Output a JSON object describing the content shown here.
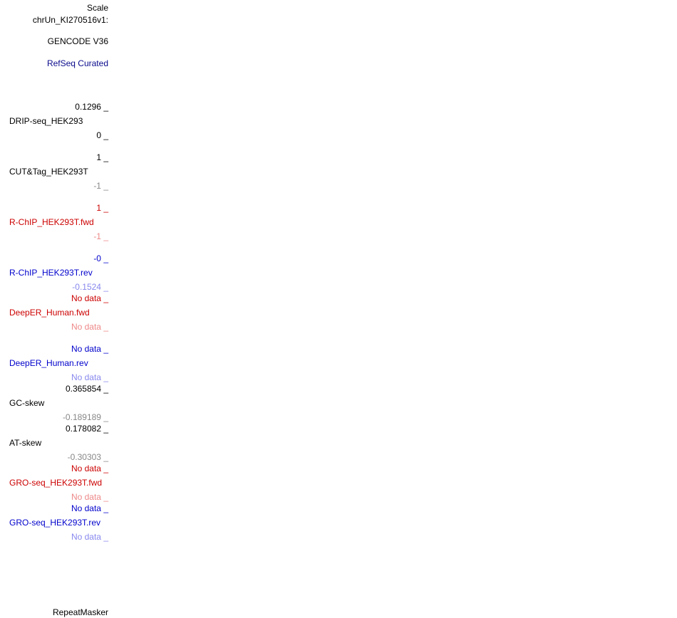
{
  "labels": {
    "scale": "Scale",
    "chrom": "chrUn_KI270516v1:",
    "gencode": "GENCODE V36",
    "refseq": "RefSeq Curated",
    "repeatmasker": "RepeatMasker"
  },
  "tracks": {
    "drip": {
      "max": "0.1296 _",
      "name": "DRIP-seq_HEK293",
      "min": "0 _"
    },
    "cuttag": {
      "max": "1 _",
      "name": "CUT&Tag_HEK293T",
      "min": "-1 _"
    },
    "rchip_fwd": {
      "max": "1 _",
      "name": "R-ChIP_HEK293T.fwd",
      "min": "-1 _"
    },
    "rchip_rev": {
      "max": "-0 _",
      "name": "R-ChIP_HEK293T.rev",
      "min": "-0.1524 _"
    },
    "deeper_fwd": {
      "max": "No data _",
      "name": "DeepER_Human.fwd",
      "min": "No data _"
    },
    "deeper_rev": {
      "max": "No data _",
      "name": "DeepER_Human.rev",
      "min": "No data _"
    },
    "gcskew": {
      "max": "0.365854 _",
      "name": "GC-skew",
      "min": "-0.189189 _"
    },
    "atskew": {
      "max": "0.178082 _",
      "name": "AT-skew",
      "min": "-0.30303 _"
    },
    "gro_fwd": {
      "max": "No data _",
      "name": "GRO-seq_HEK293T.fwd",
      "min": "No data _"
    },
    "gro_rev": {
      "max": "No data _",
      "name": "GRO-seq_HEK293T.rev",
      "min": "No data _"
    }
  },
  "colors": {
    "black": "#000000",
    "gray": "#888888",
    "red": "#cc0000",
    "light_red": "#ee8888",
    "navy": "#0a0a8c",
    "blue": "#0000cc",
    "light_blue": "#8888ee"
  }
}
